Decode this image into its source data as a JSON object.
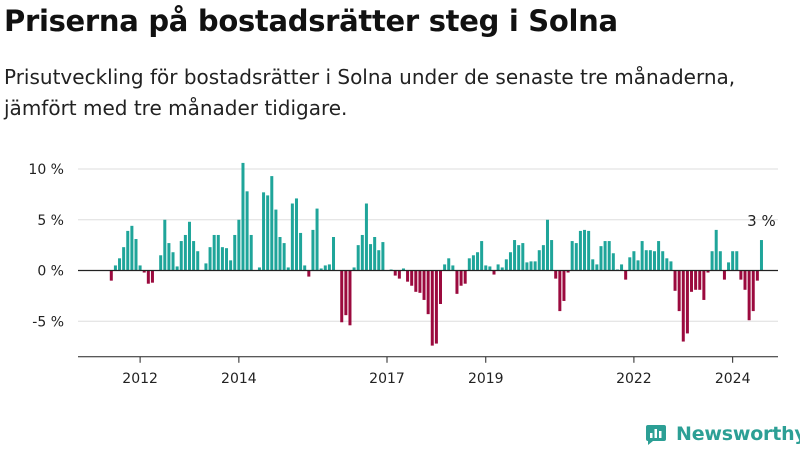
{
  "title": "Priserna på bostadsrätter steg i Solna",
  "subtitle": "Prisutveckling för bostadsrätter i Solna under de senaste tre månaderna, jämfört med tre månader tidigare.",
  "brand": {
    "name": "Newsworthy",
    "icon": "newsworthy-logo-icon"
  },
  "colors": {
    "positive": "#1fa59a",
    "negative": "#9b0a3e",
    "axis": "#222222",
    "grid": "#dddddd",
    "brand": "#2c9f95"
  },
  "chart_data": {
    "type": "bar",
    "ylim": [
      -8.5,
      11
    ],
    "yticks": [
      {
        "value": 10,
        "label": "10 %"
      },
      {
        "value": 5,
        "label": "5 %"
      },
      {
        "value": 0,
        "label": "0 %"
      },
      {
        "value": -5,
        "label": "-5 %"
      }
    ],
    "xticks": [
      {
        "index": 7,
        "label": "2012"
      },
      {
        "index": 31,
        "label": "2014"
      },
      {
        "index": 67,
        "label": "2017"
      },
      {
        "index": 91,
        "label": "2019"
      },
      {
        "index": 127,
        "label": "2022"
      },
      {
        "index": 151,
        "label": "2024"
      }
    ],
    "end_label": "3 %",
    "grid": true,
    "values": [
      -1.0,
      0.5,
      1.2,
      2.3,
      3.9,
      4.4,
      3.1,
      0.5,
      -0.2,
      -1.3,
      -1.2,
      0,
      1.5,
      5.0,
      2.7,
      1.8,
      0.4,
      2.9,
      3.5,
      4.8,
      2.9,
      1.9,
      0,
      0.7,
      2.3,
      3.5,
      3.5,
      2.3,
      2.2,
      1.0,
      3.5,
      5.0,
      10.6,
      7.8,
      3.5,
      0,
      0.3,
      7.7,
      7.4,
      9.3,
      6.0,
      3.3,
      2.7,
      0.3,
      6.6,
      7.1,
      3.7,
      0.5,
      -0.6,
      4.0,
      6.1,
      0.2,
      0.5,
      0.6,
      3.3,
      0,
      -5.1,
      -4.4,
      -5.4,
      0.3,
      2.5,
      3.5,
      6.6,
      2.6,
      3.3,
      2.0,
      2.8,
      0,
      0.1,
      -0.5,
      -0.8,
      0.2,
      -1.1,
      -1.5,
      -2.1,
      -2.2,
      -2.9,
      -4.3,
      -7.4,
      -7.2,
      -3.3,
      0.6,
      1.2,
      0.5,
      -2.3,
      -1.5,
      -1.3,
      1.2,
      1.5,
      1.8,
      2.9,
      0.5,
      0.4,
      -0.4,
      0.6,
      0.3,
      1.1,
      1.8,
      3.0,
      2.5,
      2.7,
      0.8,
      0.9,
      0.9,
      2.0,
      2.5,
      5.0,
      3.0,
      -0.8,
      -4.0,
      -3.0,
      -0.2,
      2.9,
      2.7,
      3.9,
      4.0,
      3.9,
      1.1,
      0.6,
      2.4,
      2.9,
      2.9,
      1.7,
      0.1,
      0.6,
      -0.9,
      1.3,
      1.9,
      1.0,
      2.9,
      2.0,
      2.0,
      1.9,
      2.9,
      1.9,
      1.2,
      0.9,
      -2.0,
      -4.0,
      -7.0,
      -6.2,
      -2.1,
      -1.9,
      -1.9,
      -2.9,
      -0.2,
      1.9,
      4.0,
      1.9,
      -0.9,
      0.8,
      1.9,
      1.9,
      -0.9,
      -1.9,
      -4.9,
      -4.0,
      -1.0,
      3.0
    ]
  }
}
